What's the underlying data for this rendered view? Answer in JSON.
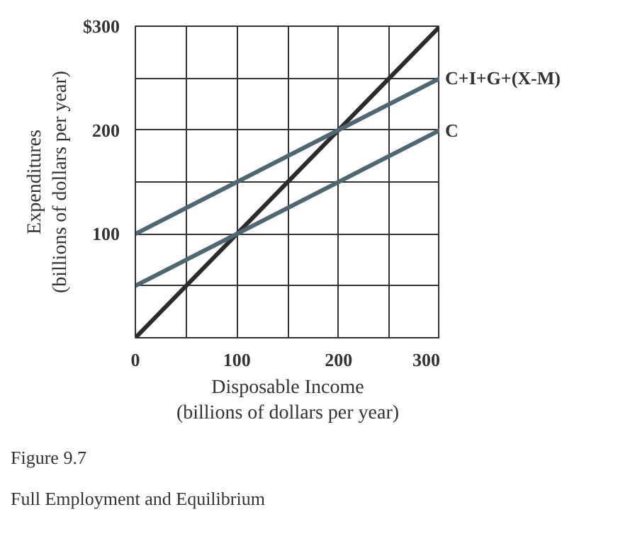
{
  "chart_data": {
    "type": "line",
    "xlabel": "Disposable Income\n(billions of dollars per year)",
    "ylabel": "Expenditures\n(billions of dollars per year)",
    "x": [
      0,
      300
    ],
    "series": [
      {
        "color": "#2b2b2b",
        "values": [
          0,
          300
        ]
      },
      {
        "name": "C+I+G+(X-M)",
        "color": "#4d6773",
        "values": [
          100,
          250
        ]
      },
      {
        "name": "C",
        "color": "#4d6773",
        "values": [
          50,
          200
        ]
      }
    ],
    "xlim": [
      0,
      300
    ],
    "ylim": [
      0,
      300
    ],
    "xticks": [
      0,
      {
        "value": 50,
        "label": null
      },
      100,
      {
        "value": 150,
        "label": null
      },
      200,
      {
        "value": 250,
        "label": null
      },
      300
    ],
    "yticks": [
      {
        "value": 50,
        "label": null
      },
      100,
      {
        "value": 150,
        "label": null
      },
      200,
      {
        "value": 250,
        "label": null
      },
      {
        "value": 300,
        "label": "$300"
      }
    ],
    "grid": true,
    "marker": "none",
    "line_style": "solid",
    "annotations": [
      "Figure 9.7",
      "Full Employment and Equilibrium"
    ]
  }
}
